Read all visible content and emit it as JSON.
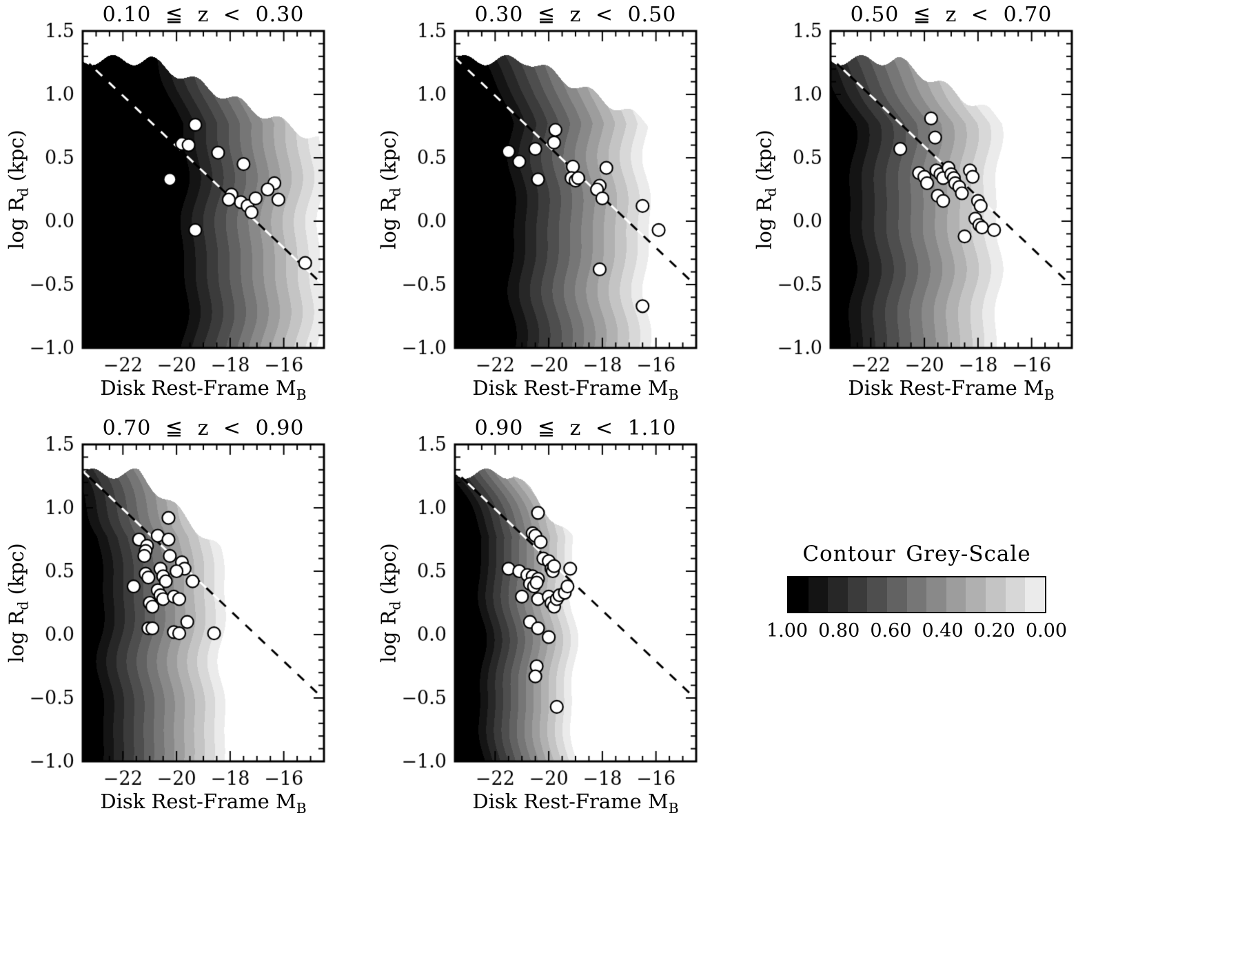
{
  "figure": {
    "background": "#ffffff",
    "text_color": "#000000",
    "point_fill": "#ffffff",
    "point_stroke": "#000000"
  },
  "axes_labels": {
    "x_main": "Disk Rest-Frame M",
    "x_sub": "B",
    "y_main": "log R",
    "y_sub": "d",
    "y_post": " (kpc)"
  },
  "legend": {
    "title": "Contour Grey-Scale",
    "tick_labels": [
      "1.00",
      "0.80",
      "0.60",
      "0.40",
      "0.20",
      "0.00"
    ],
    "n_segments": 13
  },
  "chart_data": [
    {
      "type": "scatter",
      "title": "0.10 ≦ z < 0.30",
      "xlabel": "Disk Rest-Frame M_B",
      "ylabel": "log R_d (kpc)",
      "xlim": [
        -23.5,
        -14.5
      ],
      "ylim": [
        -1.0,
        1.5
      ],
      "xticks": [
        -22,
        -20,
        -18,
        -16
      ],
      "xtick_labels": [
        "−22",
        "−20",
        "−18",
        "−16"
      ],
      "yticks": [
        1.5,
        1.0,
        0.5,
        0.0,
        -0.5,
        -1.0
      ],
      "ytick_labels": [
        "1.5",
        "1.0",
        "0.5",
        "0.0",
        "−0.5",
        "−1.0"
      ],
      "dashed_line": {
        "slope": -0.2,
        "intercept": -3.41
      },
      "contour": {
        "m_black": -19.7,
        "m_cut": -14.2,
        "cap_start": -21.0,
        "cap_slope": 0.1,
        "cap_top": 1.27,
        "flat_top": 0.77,
        "seed": 1
      },
      "points": [
        [
          -19.3,
          0.76
        ],
        [
          -19.8,
          0.61
        ],
        [
          -19.55,
          0.6
        ],
        [
          -20.25,
          0.33
        ],
        [
          -18.45,
          0.54
        ],
        [
          -17.5,
          0.45
        ],
        [
          -16.35,
          0.3
        ],
        [
          -16.2,
          0.17
        ],
        [
          -17.95,
          0.21
        ],
        [
          -17.6,
          0.15
        ],
        [
          -17.35,
          0.12
        ],
        [
          -17.2,
          0.07
        ],
        [
          -16.6,
          0.25
        ],
        [
          -19.3,
          -0.07
        ],
        [
          -15.2,
          -0.33
        ],
        [
          -18.05,
          0.17
        ],
        [
          -17.05,
          0.18
        ]
      ]
    },
    {
      "type": "scatter",
      "title": "0.30 ≦ z < 0.50",
      "xlabel": "Disk Rest-Frame M_B",
      "ylabel": "log R_d (kpc)",
      "xlim": [
        -23.5,
        -14.5
      ],
      "ylim": [
        -1.0,
        1.5
      ],
      "xticks": [
        -22,
        -20,
        -18,
        -16
      ],
      "xtick_labels": [
        "−22",
        "−20",
        "−18",
        "−16"
      ],
      "yticks": [
        1.5,
        1.0,
        0.5,
        0.0,
        -0.5,
        -1.0
      ],
      "ytick_labels": [
        "1.5",
        "1.0",
        "0.5",
        "0.0",
        "−0.5",
        "−1.0"
      ],
      "dashed_line": {
        "slope": -0.2,
        "intercept": -3.41
      },
      "contour": {
        "m_black": -21.35,
        "m_cut": -15.9,
        "cap_start": -20.8,
        "cap_slope": 0.11,
        "cap_top": 1.27,
        "flat_top": 0.77,
        "seed": 2
      },
      "points": [
        [
          -21.5,
          0.55
        ],
        [
          -21.1,
          0.47
        ],
        [
          -20.5,
          0.57
        ],
        [
          -19.75,
          0.72
        ],
        [
          -19.8,
          0.62
        ],
        [
          -20.4,
          0.33
        ],
        [
          -19.1,
          0.43
        ],
        [
          -19.15,
          0.34
        ],
        [
          -19.0,
          0.32
        ],
        [
          -18.9,
          0.34
        ],
        [
          -17.85,
          0.42
        ],
        [
          -18.1,
          0.28
        ],
        [
          -18.2,
          0.25
        ],
        [
          -18.0,
          0.18
        ],
        [
          -16.5,
          0.12
        ],
        [
          -15.9,
          -0.07
        ],
        [
          -18.1,
          -0.38
        ],
        [
          -16.5,
          -0.67
        ]
      ]
    },
    {
      "type": "scatter",
      "title": "0.50 ≦ z < 0.70",
      "xlabel": "Disk Rest-Frame M_B",
      "ylabel": "log R_d (kpc)",
      "xlim": [
        -23.5,
        -14.5
      ],
      "ylim": [
        -1.0,
        1.5
      ],
      "xticks": [
        -22,
        -20,
        -18,
        -16
      ],
      "xtick_labels": [
        "−22",
        "−20",
        "−18",
        "−16"
      ],
      "yticks": [
        1.5,
        1.0,
        0.5,
        0.0,
        -0.5,
        -1.0
      ],
      "ytick_labels": [
        "1.5",
        "1.0",
        "0.5",
        "0.0",
        "−0.5",
        "−1.0"
      ],
      "dashed_line": {
        "slope": -0.2,
        "intercept": -3.41
      },
      "contour": {
        "m_black": -22.7,
        "m_cut": -16.8,
        "cap_start": -21.0,
        "cap_slope": 0.12,
        "cap_top": 1.27,
        "flat_top": 0.77,
        "seed": 3
      },
      "points": [
        [
          -20.9,
          0.57
        ],
        [
          -19.75,
          0.81
        ],
        [
          -19.6,
          0.66
        ],
        [
          -20.2,
          0.38
        ],
        [
          -20.0,
          0.35
        ],
        [
          -19.9,
          0.3
        ],
        [
          -19.55,
          0.4
        ],
        [
          -19.4,
          0.37
        ],
        [
          -19.3,
          0.34
        ],
        [
          -19.1,
          0.42
        ],
        [
          -19.0,
          0.37
        ],
        [
          -18.9,
          0.34
        ],
        [
          -18.85,
          0.3
        ],
        [
          -19.5,
          0.2
        ],
        [
          -19.3,
          0.16
        ],
        [
          -18.7,
          0.27
        ],
        [
          -18.6,
          0.22
        ],
        [
          -18.3,
          0.4
        ],
        [
          -18.2,
          0.35
        ],
        [
          -18.0,
          0.16
        ],
        [
          -17.9,
          0.12
        ],
        [
          -18.1,
          0.02
        ],
        [
          -17.95,
          -0.03
        ],
        [
          -17.85,
          -0.05
        ],
        [
          -18.5,
          -0.12
        ],
        [
          -17.4,
          -0.07
        ]
      ]
    },
    {
      "type": "scatter",
      "title": "0.70 ≦ z < 0.90",
      "xlabel": "Disk Rest-Frame M_B",
      "ylabel": "log R_d (kpc)",
      "xlim": [
        -23.5,
        -14.5
      ],
      "ylim": [
        -1.0,
        1.5
      ],
      "xticks": [
        -22,
        -20,
        -18,
        -16
      ],
      "xtick_labels": [
        "−22",
        "−20",
        "−18",
        "−16"
      ],
      "yticks": [
        1.5,
        1.0,
        0.5,
        0.0,
        -0.5,
        -1.0
      ],
      "ytick_labels": [
        "1.5",
        "1.0",
        "0.5",
        "0.0",
        "−0.5",
        "−1.0"
      ],
      "dashed_line": {
        "slope": -0.2,
        "intercept": -3.41
      },
      "contour": {
        "m_black": -22.8,
        "m_cut": -17.9,
        "cap_start": -21.4,
        "cap_slope": 0.2,
        "cap_top": 1.27,
        "flat_top": 0.77,
        "seed": 4
      },
      "points": [
        [
          -20.3,
          0.92
        ],
        [
          -21.4,
          0.75
        ],
        [
          -20.7,
          0.78
        ],
        [
          -21.1,
          0.7
        ],
        [
          -21.15,
          0.66
        ],
        [
          -21.2,
          0.62
        ],
        [
          -20.3,
          0.75
        ],
        [
          -20.25,
          0.62
        ],
        [
          -19.8,
          0.57
        ],
        [
          -19.7,
          0.52
        ],
        [
          -21.15,
          0.48
        ],
        [
          -21.05,
          0.45
        ],
        [
          -20.6,
          0.52
        ],
        [
          -20.5,
          0.46
        ],
        [
          -20.4,
          0.42
        ],
        [
          -21.6,
          0.38
        ],
        [
          -20.7,
          0.35
        ],
        [
          -20.6,
          0.31
        ],
        [
          -20.5,
          0.28
        ],
        [
          -21.0,
          0.25
        ],
        [
          -20.9,
          0.22
        ],
        [
          -20.0,
          0.5
        ],
        [
          -20.1,
          0.3
        ],
        [
          -19.9,
          0.28
        ],
        [
          -21.05,
          0.05
        ],
        [
          -20.9,
          0.05
        ],
        [
          -20.1,
          0.02
        ],
        [
          -19.9,
          0.01
        ],
        [
          -19.6,
          0.1
        ],
        [
          -18.6,
          0.01
        ],
        [
          -19.4,
          0.42
        ]
      ]
    },
    {
      "type": "scatter",
      "title": "0.90 ≦ z < 1.10",
      "xlabel": "Disk Rest-Frame M_B",
      "ylabel": "log R_d (kpc)",
      "xlim": [
        -23.5,
        -14.5
      ],
      "ylim": [
        -1.0,
        1.5
      ],
      "xticks": [
        -22,
        -20,
        -18,
        -16
      ],
      "xtick_labels": [
        "−22",
        "−20",
        "−18",
        "−16"
      ],
      "yticks": [
        1.5,
        1.0,
        0.5,
        0.0,
        -0.5,
        -1.0
      ],
      "ytick_labels": [
        "1.5",
        "1.0",
        "0.5",
        "0.0",
        "−0.5",
        "−1.0"
      ],
      "dashed_line": {
        "slope": -0.2,
        "intercept": -3.41
      },
      "contour": {
        "m_black": -22.5,
        "m_cut": -18.8,
        "cap_start": -21.3,
        "cap_slope": 0.24,
        "cap_top": 1.27,
        "flat_top": 0.77,
        "seed": 5
      },
      "points": [
        [
          -20.4,
          0.96
        ],
        [
          -20.6,
          0.8
        ],
        [
          -20.5,
          0.78
        ],
        [
          -20.3,
          0.73
        ],
        [
          -21.5,
          0.52
        ],
        [
          -21.1,
          0.5
        ],
        [
          -20.8,
          0.47
        ],
        [
          -20.6,
          0.46
        ],
        [
          -20.4,
          0.44
        ],
        [
          -20.2,
          0.6
        ],
        [
          -20.0,
          0.58
        ],
        [
          -19.9,
          0.52
        ],
        [
          -19.85,
          0.5
        ],
        [
          -19.8,
          0.54
        ],
        [
          -20.7,
          0.4
        ],
        [
          -20.55,
          0.38
        ],
        [
          -20.45,
          0.41
        ],
        [
          -21.0,
          0.3
        ],
        [
          -20.4,
          0.28
        ],
        [
          -20.0,
          0.3
        ],
        [
          -19.9,
          0.25
        ],
        [
          -19.8,
          0.22
        ],
        [
          -19.7,
          0.28
        ],
        [
          -19.6,
          0.31
        ],
        [
          -19.4,
          0.33
        ],
        [
          -19.3,
          0.38
        ],
        [
          -19.2,
          0.52
        ],
        [
          -20.7,
          0.1
        ],
        [
          -20.4,
          0.05
        ],
        [
          -20.0,
          -0.02
        ],
        [
          -20.45,
          -0.25
        ],
        [
          -20.5,
          -0.33
        ],
        [
          -19.7,
          -0.57
        ]
      ]
    }
  ]
}
